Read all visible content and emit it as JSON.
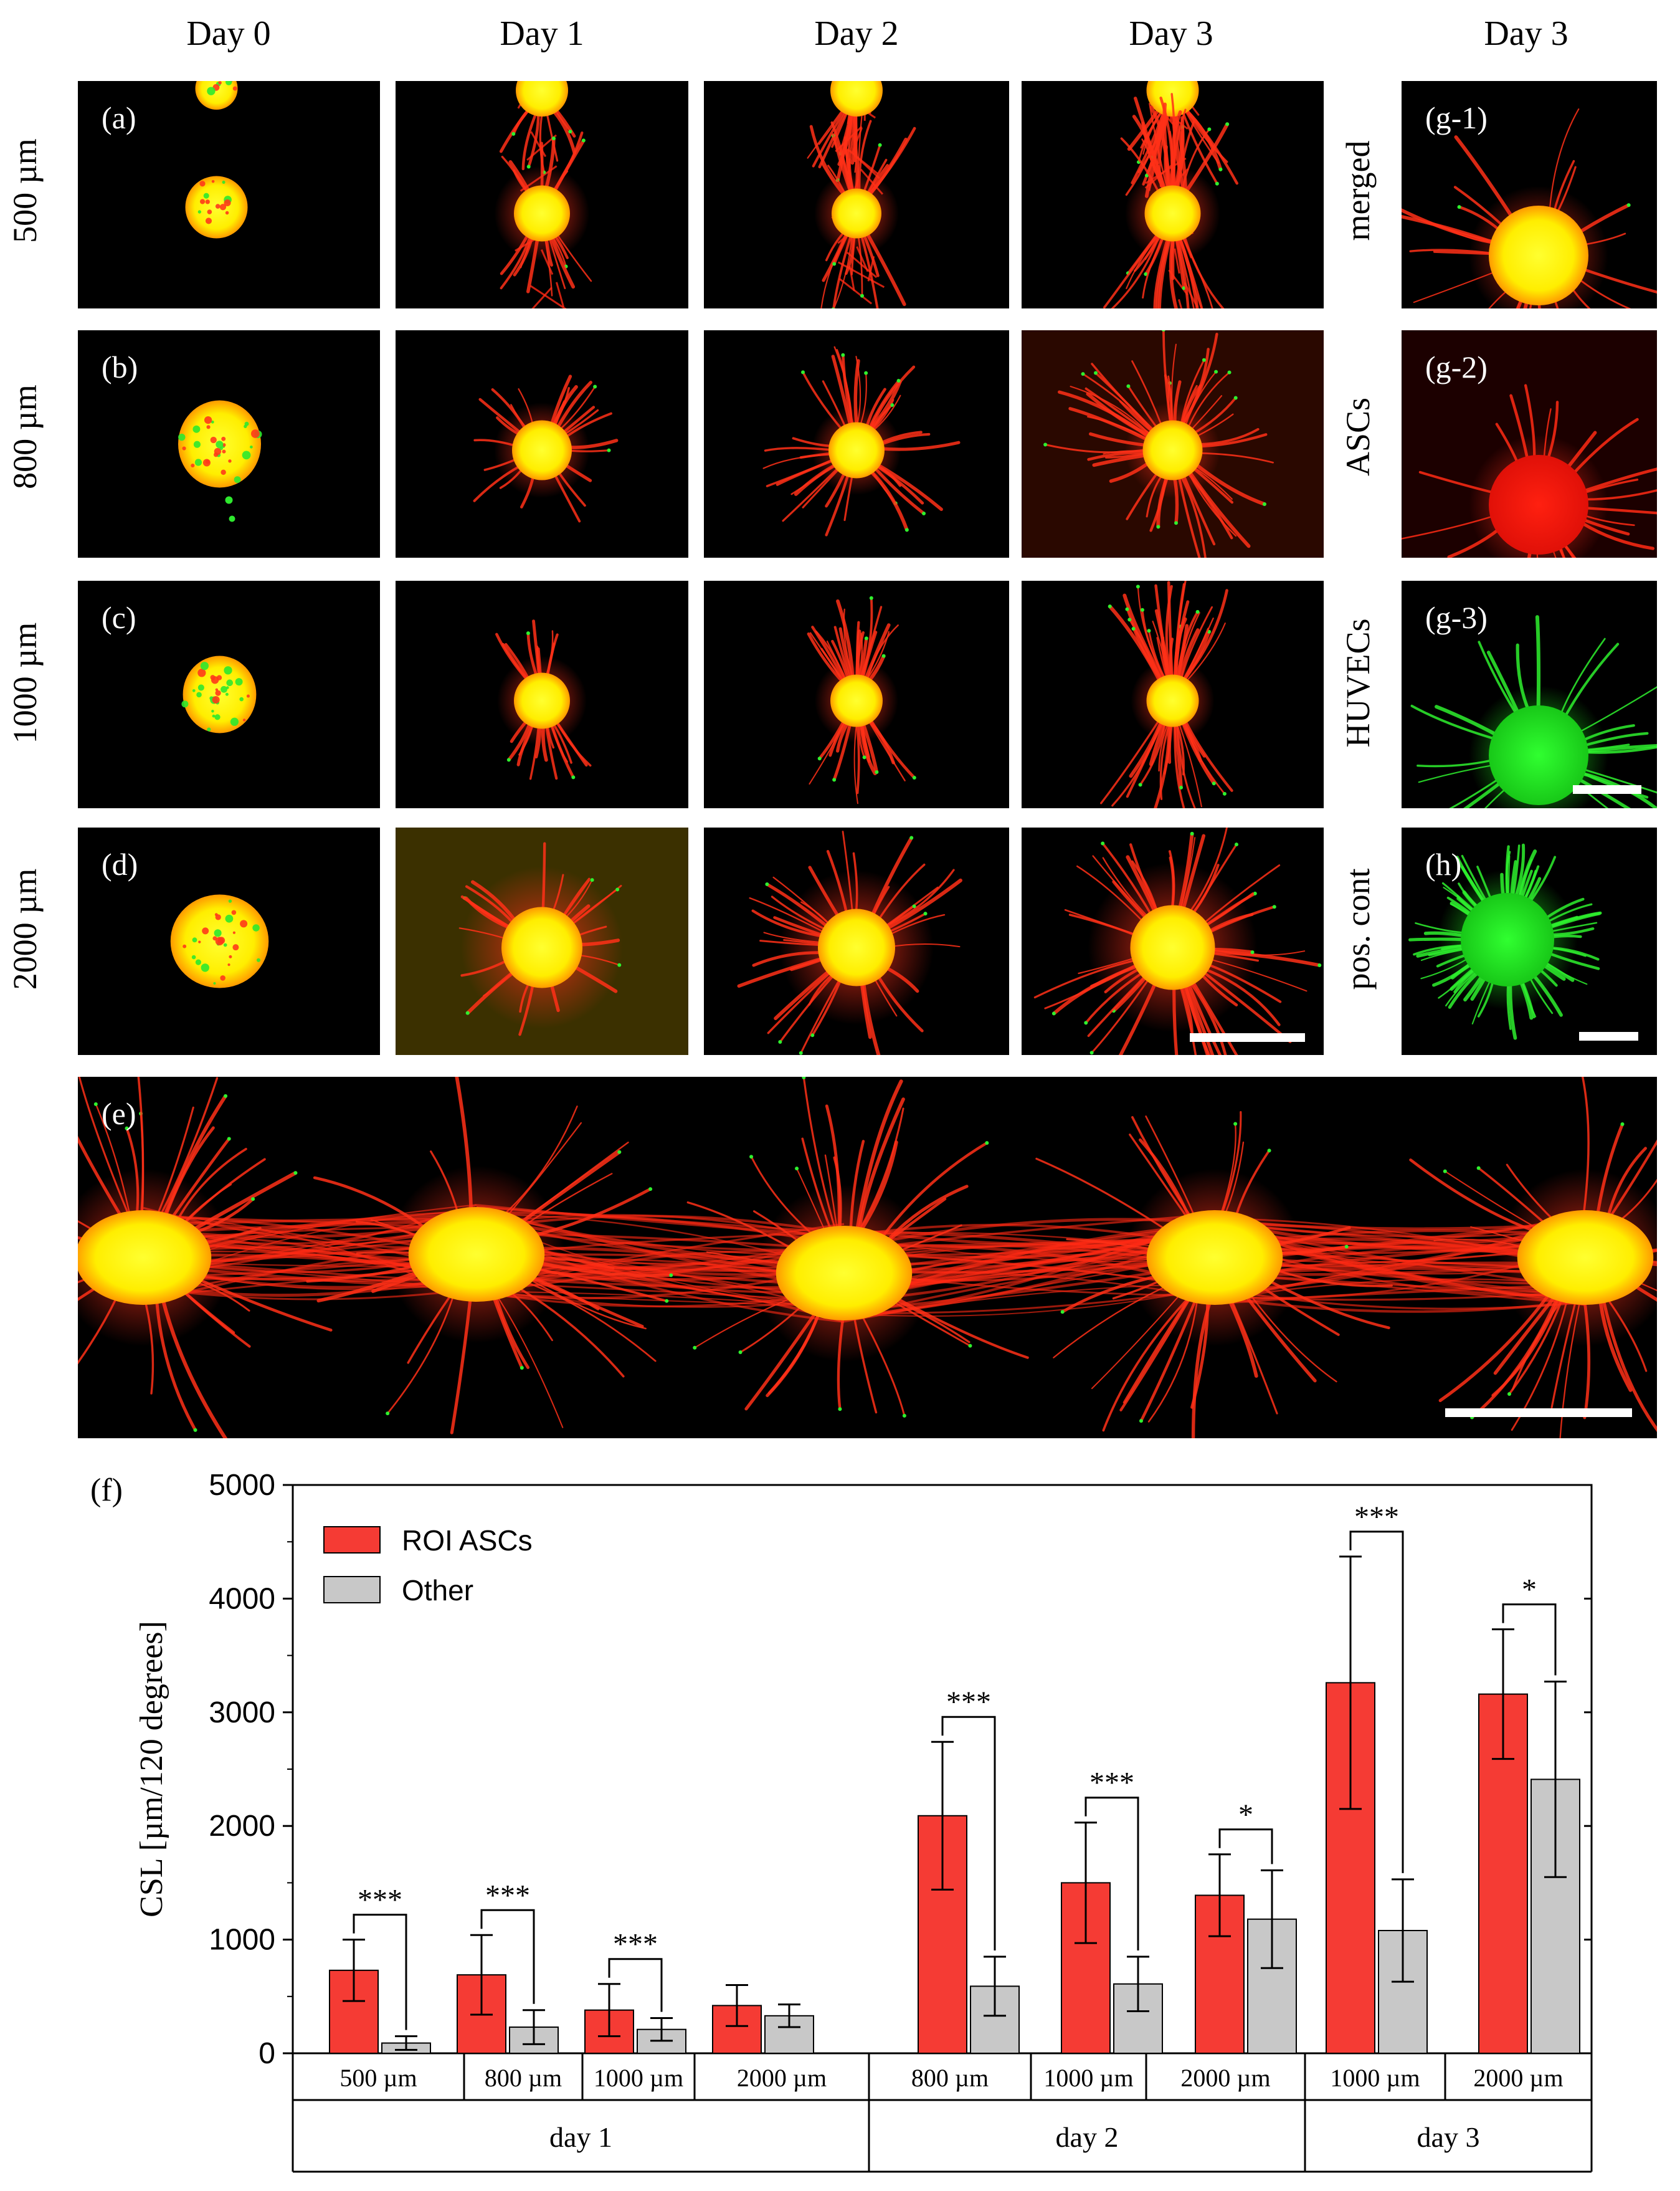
{
  "columns": [
    "Day 0",
    "Day 1",
    "Day 2",
    "Day 3",
    "Day 3"
  ],
  "rows": [
    "500 µm",
    "800 µm",
    "1000 µm",
    "2000 µm"
  ],
  "side_labels": [
    "merged",
    "ASCs",
    "HUVECs",
    "pos. cont"
  ],
  "panel_tags": {
    "a": "(a)",
    "b": "(b)",
    "c": "(c)",
    "d": "(d)",
    "e": "(e)",
    "g1": "(g-1)",
    "g2": "(g-2)",
    "g3": "(g-3)",
    "h": "(h)"
  },
  "colors": {
    "red": "#ff2a1a",
    "yellow": "#ffff00",
    "green": "#22e022",
    "roi_bar": "#f53b34",
    "other_bar": "#c8c8c8"
  },
  "chart_data": {
    "type": "bar",
    "panel_label": "(f)",
    "ylabel": "CSL [µm/120 degrees]",
    "ylim": [
      0,
      5000
    ],
    "yticks": [
      0,
      1000,
      2000,
      3000,
      4000,
      5000
    ],
    "legend": {
      "placement": "top-left",
      "entries": [
        "ROI ASCs",
        "Other"
      ]
    },
    "groups": [
      {
        "label": "day 1",
        "subgroups": [
          {
            "label": "500 µm",
            "roi": 730,
            "roi_err": 270,
            "other": 90,
            "other_err": 60,
            "sig": "***"
          },
          {
            "label": "800 µm",
            "roi": 690,
            "roi_err": 350,
            "other": 230,
            "other_err": 150,
            "sig": "***"
          },
          {
            "label": "1000 µm",
            "roi": 380,
            "roi_err": 230,
            "other": 210,
            "other_err": 100,
            "sig": "***"
          },
          {
            "label": "2000 µm",
            "roi": 420,
            "roi_err": 180,
            "other": 330,
            "other_err": 100,
            "sig": ""
          }
        ]
      },
      {
        "label": "day 2",
        "subgroups": [
          {
            "label": "800 µm",
            "roi": 2090,
            "roi_err": 650,
            "other": 590,
            "other_err": 260,
            "sig": "***"
          },
          {
            "label": "1000 µm",
            "roi": 1500,
            "roi_err": 530,
            "other": 610,
            "other_err": 240,
            "sig": "***"
          },
          {
            "label": "2000 µm",
            "roi": 1390,
            "roi_err": 360,
            "other": 1180,
            "other_err": 430,
            "sig": "*"
          }
        ]
      },
      {
        "label": "day 3",
        "subgroups": [
          {
            "label": "1000 µm",
            "roi": 3260,
            "roi_err": 1110,
            "other": 1080,
            "other_err": 450,
            "sig": "***"
          },
          {
            "label": "2000 µm",
            "roi": 3160,
            "roi_err": 570,
            "other": 2410,
            "other_err": 860,
            "sig": "*"
          }
        ]
      }
    ]
  }
}
